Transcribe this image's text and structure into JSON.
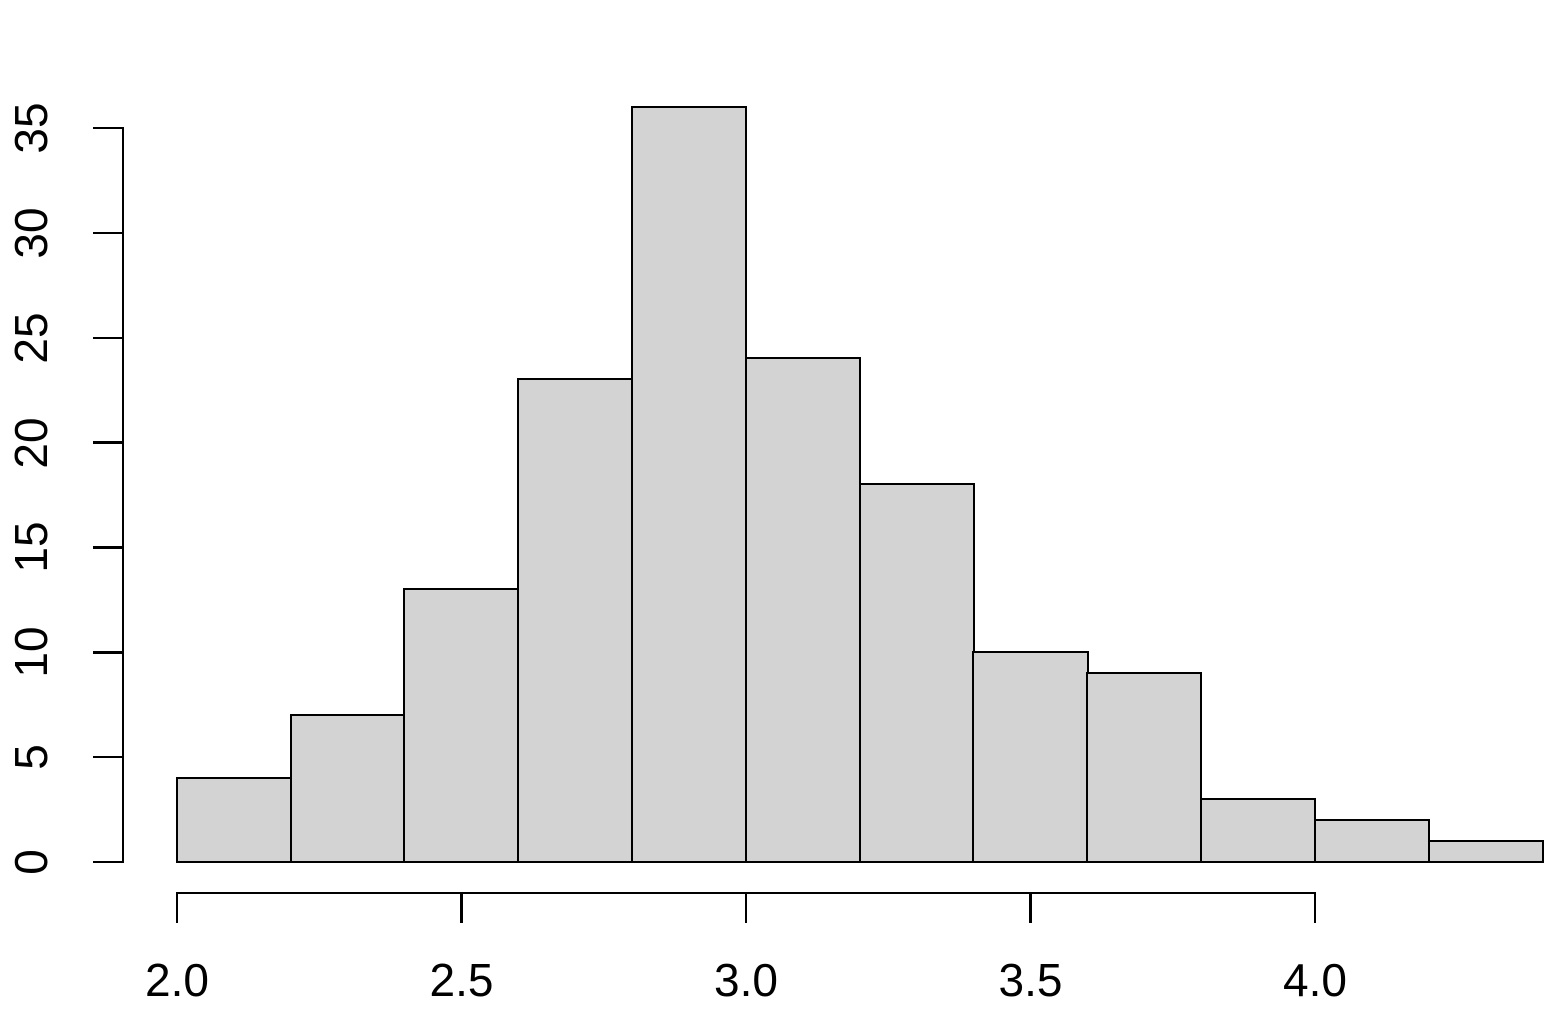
{
  "chart_data": {
    "type": "bar",
    "subtype": "histogram",
    "title": "",
    "xlabel": "",
    "ylabel": "",
    "bin_edges": [
      2.0,
      2.2,
      2.4,
      2.6,
      2.8,
      3.0,
      3.2,
      3.4,
      3.6,
      3.8,
      4.0,
      4.2,
      4.4
    ],
    "counts": [
      4,
      7,
      13,
      23,
      36,
      24,
      18,
      10,
      9,
      3,
      2,
      1
    ],
    "xlim": [
      2.0,
      4.4
    ],
    "ylim": [
      0,
      35
    ],
    "x_ticks": {
      "values": [
        2.0,
        2.5,
        3.0,
        3.5,
        4.0
      ],
      "labels": [
        "2.0",
        "2.5",
        "3.0",
        "3.5",
        "4.0"
      ]
    },
    "y_ticks": {
      "values": [
        0,
        5,
        10,
        15,
        20,
        25,
        30,
        35
      ],
      "labels": [
        "0",
        "5",
        "10",
        "15",
        "20",
        "25",
        "30",
        "35"
      ]
    },
    "grid": false,
    "legend": false,
    "colors": {
      "bar_fill": "#d3d3d3",
      "bar_border": "#000000",
      "axis": "#000000",
      "text": "#000000",
      "background": "#ffffff"
    }
  }
}
